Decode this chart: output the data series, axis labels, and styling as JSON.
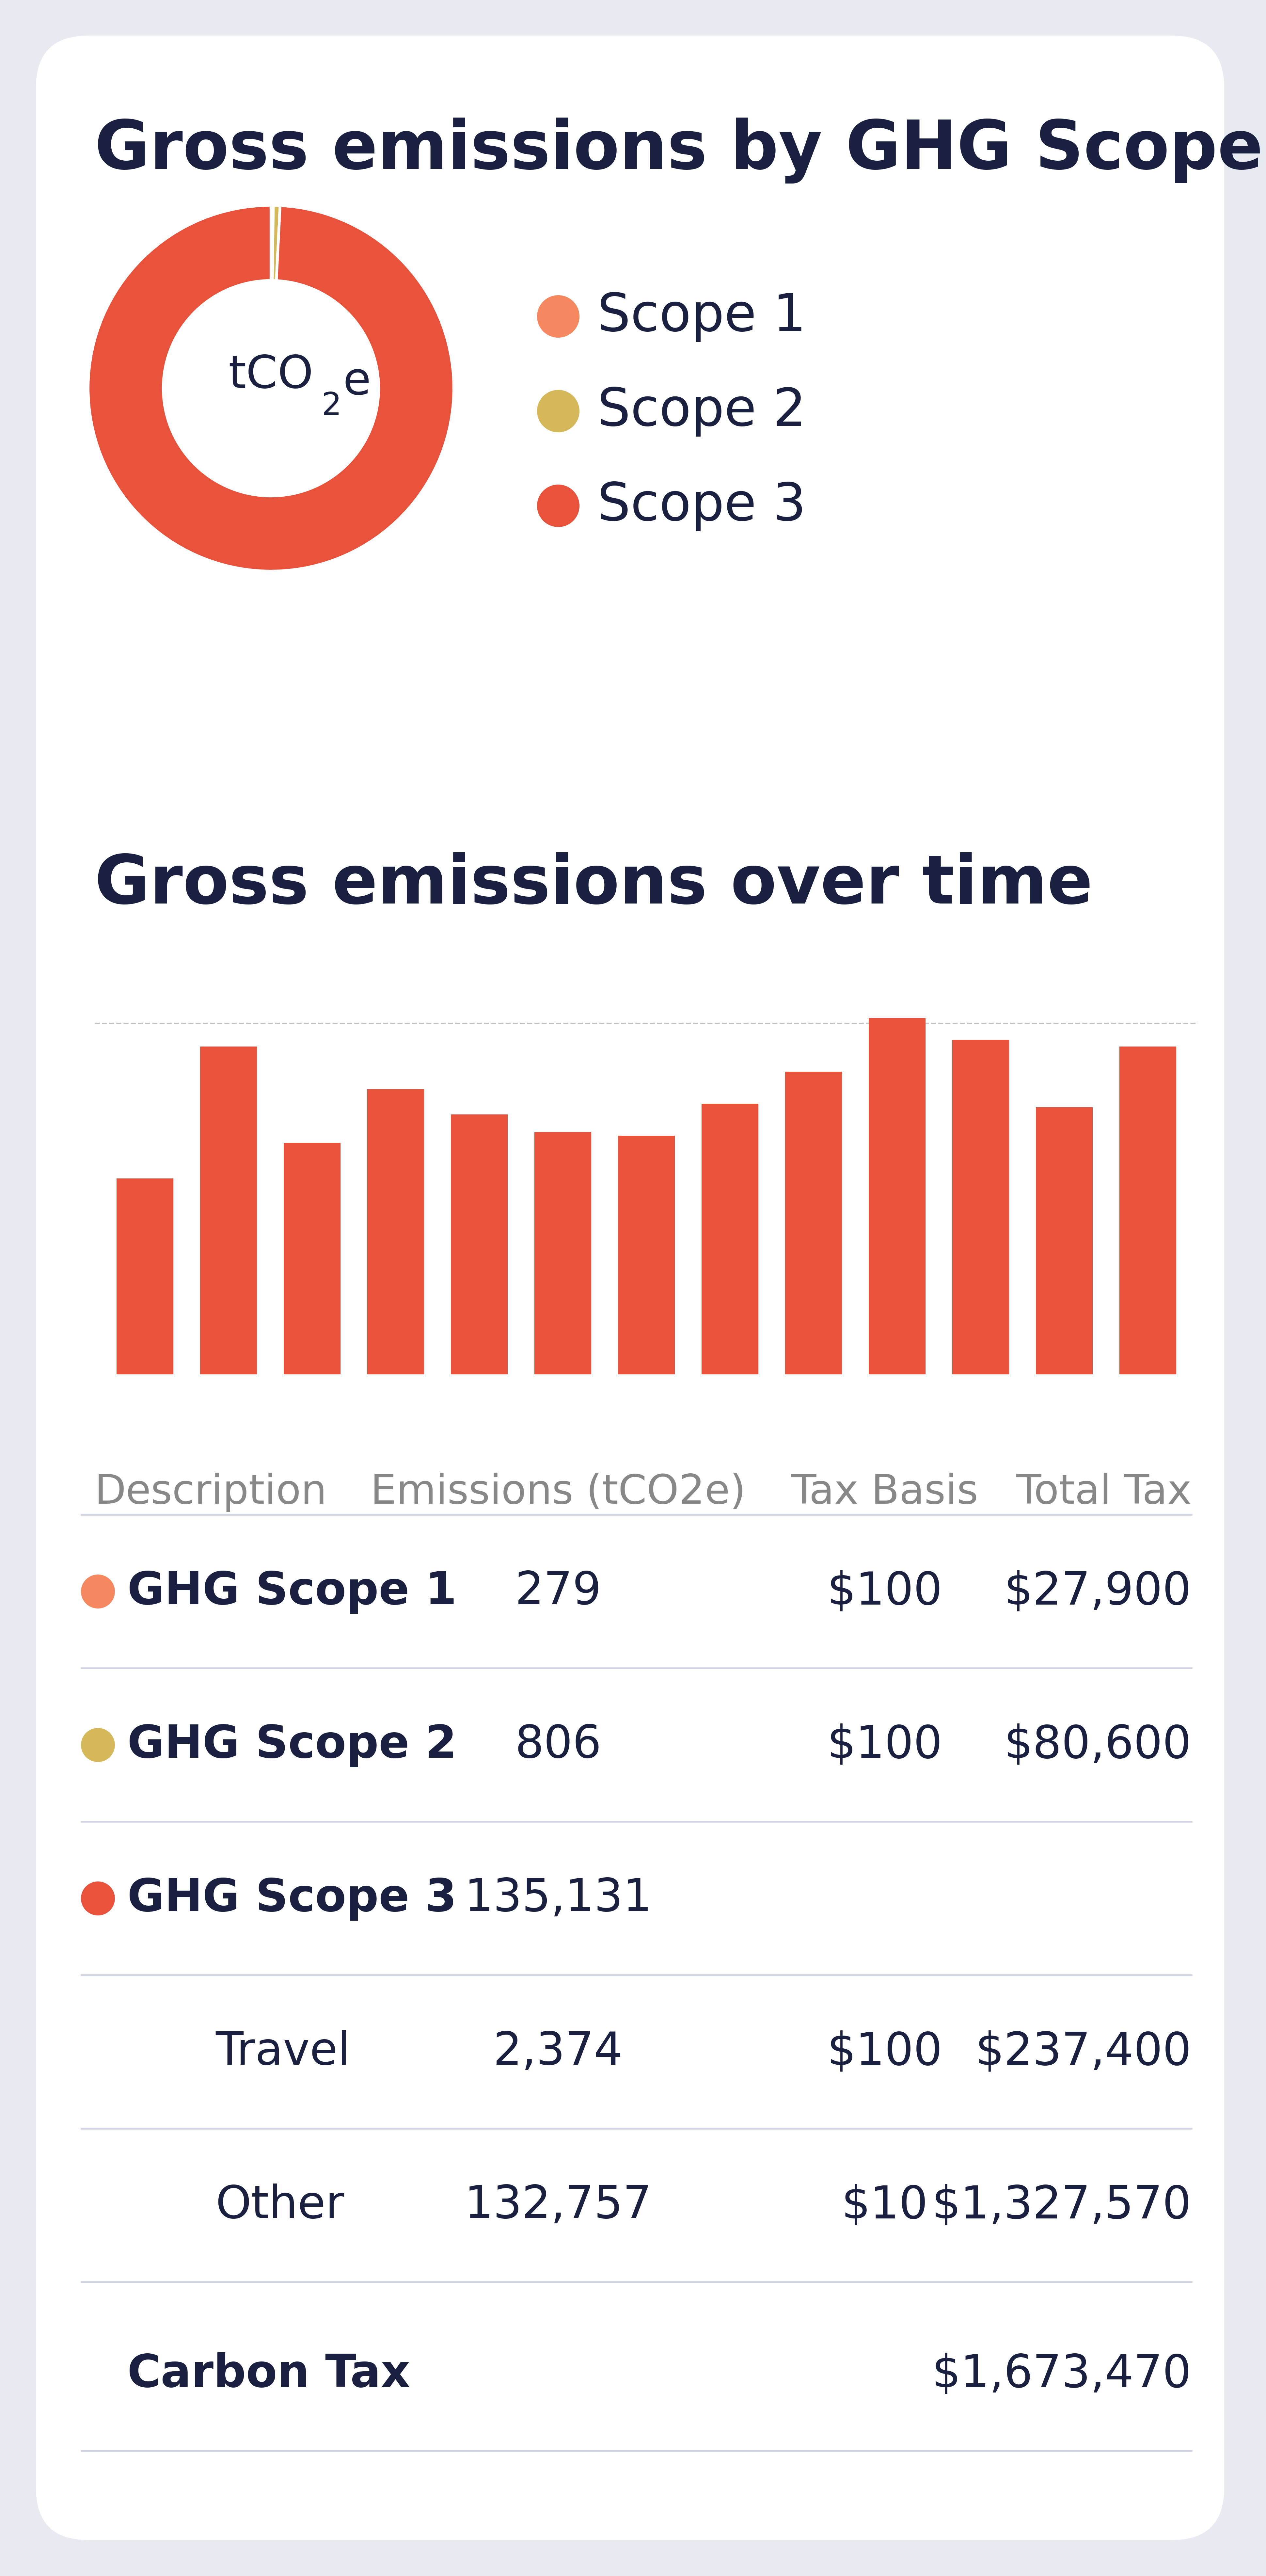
{
  "title1": "Gross emissions by GHG Scope",
  "title2": "Gross emissions over time",
  "background_color": "#e8eaf2",
  "card_color": "#ffffff",
  "title_color": "#1a2040",
  "text_color": "#1a2040",
  "header_color": "#888888",
  "donut_values": [
    279,
    806,
    135131
  ],
  "donut_colors": [
    "#f5885f",
    "#d4b85a",
    "#e8523a"
  ],
  "donut_labels": [
    "Scope 1",
    "Scope 2",
    "Scope 3"
  ],
  "bar_values": [
    55,
    92,
    65,
    80,
    73,
    68,
    67,
    76,
    85,
    100,
    94,
    75,
    92
  ],
  "bar_color": "#e8523a",
  "table_headers": [
    "Description",
    "Emissions (tCO2e)",
    "Tax Basis",
    "Total Tax"
  ],
  "table_rows": [
    {
      "dot_color": "#f5885f",
      "label": "GHG Scope 1",
      "emissions": "279",
      "tax_basis": "$100",
      "total_tax": "$27,900",
      "bold": true,
      "indent": false
    },
    {
      "dot_color": "#d4b85a",
      "label": "GHG Scope 2",
      "emissions": "806",
      "tax_basis": "$100",
      "total_tax": "$80,600",
      "bold": true,
      "indent": false
    },
    {
      "dot_color": "#e8523a",
      "label": "GHG Scope 3",
      "emissions": "135,131",
      "tax_basis": "",
      "total_tax": "",
      "bold": true,
      "indent": false
    },
    {
      "dot_color": null,
      "label": "Travel",
      "emissions": "2,374",
      "tax_basis": "$100",
      "total_tax": "$237,400",
      "bold": false,
      "indent": true
    },
    {
      "dot_color": null,
      "label": "Other",
      "emissions": "132,757",
      "tax_basis": "$10",
      "total_tax": "$1,327,570",
      "bold": false,
      "indent": true
    }
  ],
  "footer_label": "Carbon Tax",
  "footer_value": "$1,673,470",
  "divider_color": "#d0d4e0",
  "line_color": "#c8ccda"
}
